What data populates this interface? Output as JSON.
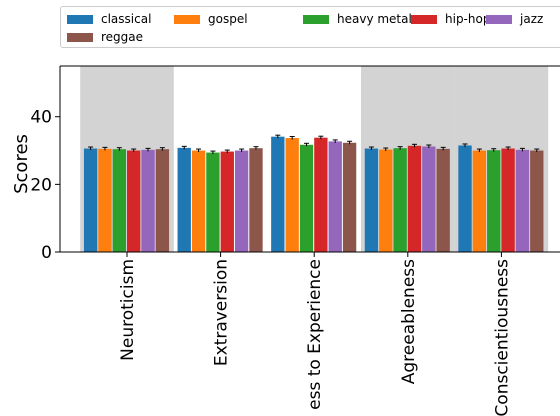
{
  "chart_data": {
    "type": "bar",
    "title": "",
    "xlabel": "",
    "ylabel": "Scores",
    "ylim": [
      0,
      55
    ],
    "yticks": [
      0,
      20,
      40
    ],
    "categories": [
      "Neuroticism",
      "Extraversion",
      "ess to Experience",
      "Agreeableness",
      "Conscientiousness"
    ],
    "highlighted_categories": [
      "Neuroticism",
      "Agreeableness",
      "Conscientiousness"
    ],
    "highlight_color": "#d3d3d3",
    "grid": false,
    "legend_position": "top",
    "series": [
      {
        "name": "classical",
        "color": "#1f77b4",
        "values": [
          30.6,
          30.8,
          34.1,
          30.6,
          31.5
        ]
      },
      {
        "name": "gospel",
        "color": "#ff7f0e",
        "values": [
          30.5,
          30.0,
          33.7,
          30.3,
          30.0
        ]
      },
      {
        "name": "heavy metal",
        "color": "#2ca02c",
        "values": [
          30.4,
          29.4,
          31.7,
          30.7,
          30.1
        ]
      },
      {
        "name": "hip-hop",
        "color": "#d62728",
        "values": [
          30.0,
          29.7,
          33.8,
          31.4,
          30.6
        ]
      },
      {
        "name": "jazz",
        "color": "#9467bd",
        "values": [
          30.2,
          30.0,
          32.7,
          31.2,
          30.2
        ]
      },
      {
        "name": "reggae",
        "color": "#8c564b",
        "values": [
          30.4,
          30.7,
          32.3,
          30.5,
          30.0
        ]
      }
    ]
  }
}
